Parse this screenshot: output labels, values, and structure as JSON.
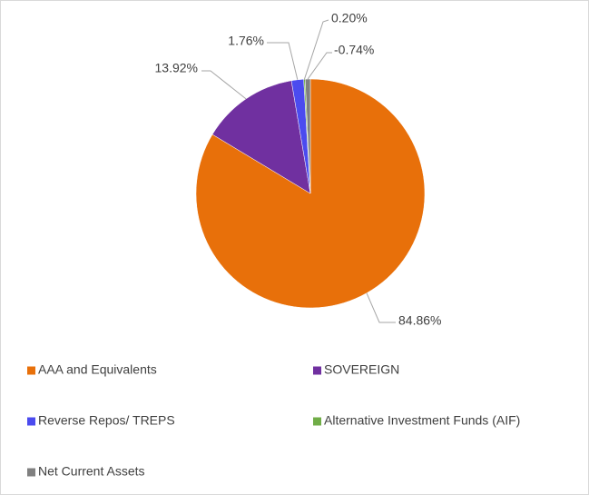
{
  "chart_data": {
    "type": "pie",
    "categories": [
      "AAA and Equivalents",
      "SOVEREIGN",
      "Reverse Repos/ TREPS",
      "Alternative Investment Funds (AIF)",
      "Net Current Assets"
    ],
    "values": [
      84.86,
      13.92,
      1.76,
      0.2,
      -0.74
    ],
    "value_labels": [
      "84.86%",
      "13.92%",
      "1.76%",
      "0.20%",
      "-0.74%"
    ],
    "colors": [
      "#e8700a",
      "#7030a0",
      "#4b4bef",
      "#70ad47",
      "#808080"
    ],
    "legend": "bottom"
  }
}
